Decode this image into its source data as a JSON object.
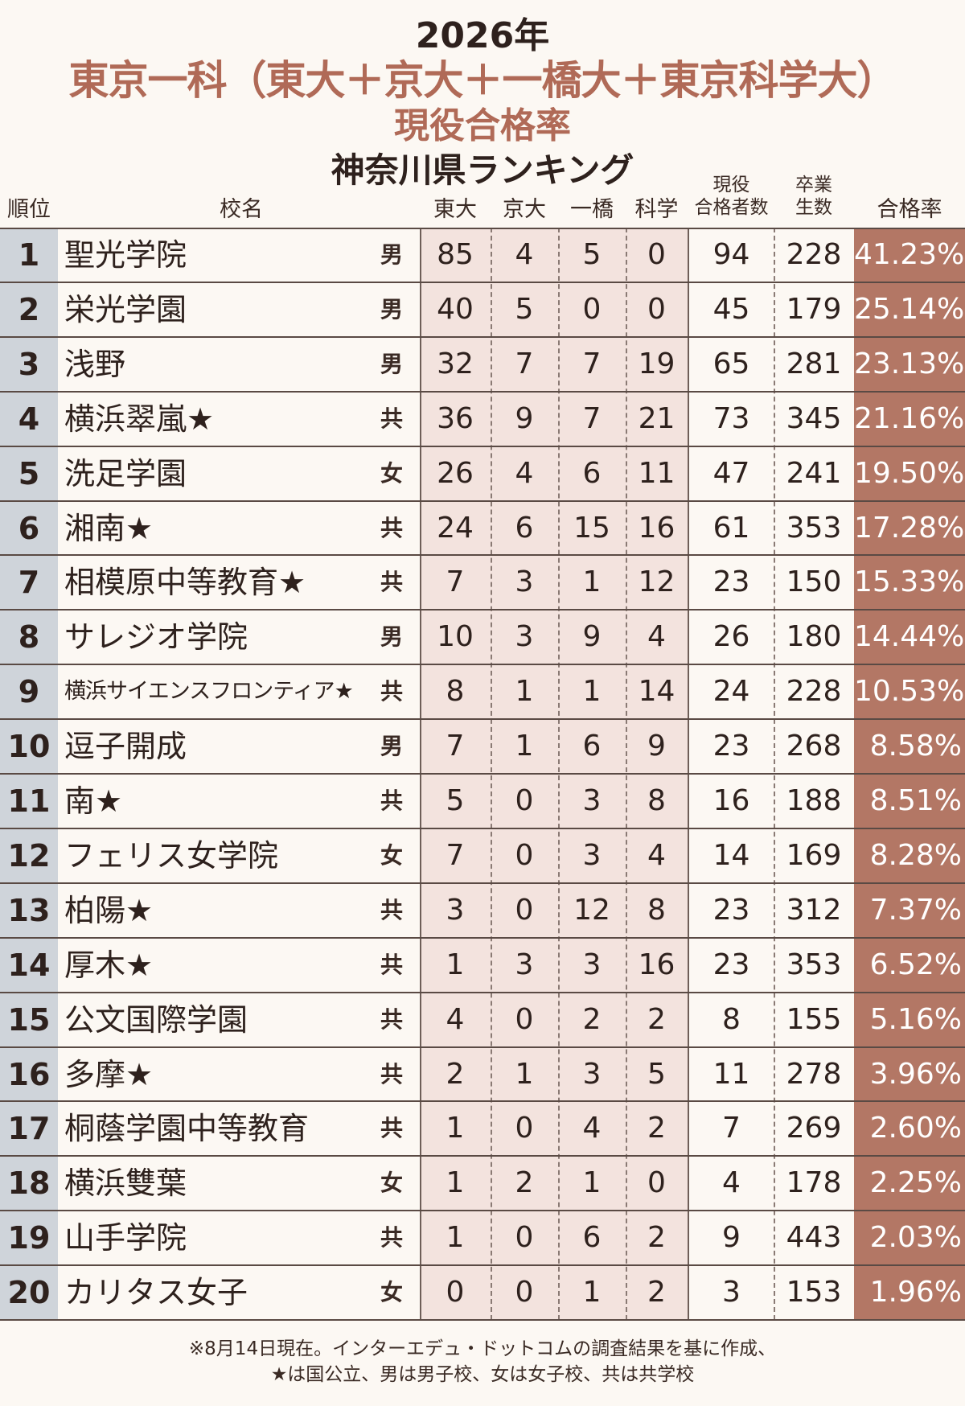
{
  "chart_data": {
    "type": "table",
    "title_year": "2026年",
    "title_main": "東京一科（東大＋京大＋一橋大＋東京科学大）",
    "title_sub": "現役合格率",
    "title_region": "神奈川県ランキング",
    "headers": {
      "rank": "順位",
      "name": "校名",
      "tokyo": "東大",
      "kyoto": "京大",
      "hitotsubashi": "一橋",
      "kagaku": "科学",
      "total_l1": "現役",
      "total_l2": "合格者数",
      "grads_l1": "卒業",
      "grads_l2": "生数",
      "rate": "合格率"
    },
    "rows": [
      {
        "rank": "1",
        "name": "聖光学院",
        "type": "男",
        "tokyo": "85",
        "kyoto": "4",
        "hitotsubashi": "5",
        "kagaku": "0",
        "total": "94",
        "grads": "228",
        "rate": "41.23%"
      },
      {
        "rank": "2",
        "name": "栄光学園",
        "type": "男",
        "tokyo": "40",
        "kyoto": "5",
        "hitotsubashi": "0",
        "kagaku": "0",
        "total": "45",
        "grads": "179",
        "rate": "25.14%"
      },
      {
        "rank": "3",
        "name": "浅野",
        "type": "男",
        "tokyo": "32",
        "kyoto": "7",
        "hitotsubashi": "7",
        "kagaku": "19",
        "total": "65",
        "grads": "281",
        "rate": "23.13%"
      },
      {
        "rank": "4",
        "name": "横浜翠嵐★",
        "type": "共",
        "tokyo": "36",
        "kyoto": "9",
        "hitotsubashi": "7",
        "kagaku": "21",
        "total": "73",
        "grads": "345",
        "rate": "21.16%"
      },
      {
        "rank": "5",
        "name": "洗足学園",
        "type": "女",
        "tokyo": "26",
        "kyoto": "4",
        "hitotsubashi": "6",
        "kagaku": "11",
        "total": "47",
        "grads": "241",
        "rate": "19.50%"
      },
      {
        "rank": "6",
        "name": "湘南★",
        "type": "共",
        "tokyo": "24",
        "kyoto": "6",
        "hitotsubashi": "15",
        "kagaku": "16",
        "total": "61",
        "grads": "353",
        "rate": "17.28%"
      },
      {
        "rank": "7",
        "name": "相模原中等教育★",
        "type": "共",
        "tokyo": "7",
        "kyoto": "3",
        "hitotsubashi": "1",
        "kagaku": "12",
        "total": "23",
        "grads": "150",
        "rate": "15.33%"
      },
      {
        "rank": "8",
        "name": "サレジオ学院",
        "type": "男",
        "tokyo": "10",
        "kyoto": "3",
        "hitotsubashi": "9",
        "kagaku": "4",
        "total": "26",
        "grads": "180",
        "rate": "14.44%"
      },
      {
        "rank": "9",
        "name": "横浜サイエンスフロンティア★",
        "type": "共",
        "tokyo": "8",
        "kyoto": "1",
        "hitotsubashi": "1",
        "kagaku": "14",
        "total": "24",
        "grads": "228",
        "rate": "10.53%"
      },
      {
        "rank": "10",
        "name": "逗子開成",
        "type": "男",
        "tokyo": "7",
        "kyoto": "1",
        "hitotsubashi": "6",
        "kagaku": "9",
        "total": "23",
        "grads": "268",
        "rate": "8.58%"
      },
      {
        "rank": "11",
        "name": "南★",
        "type": "共",
        "tokyo": "5",
        "kyoto": "0",
        "hitotsubashi": "3",
        "kagaku": "8",
        "total": "16",
        "grads": "188",
        "rate": "8.51%"
      },
      {
        "rank": "12",
        "name": "フェリス女学院",
        "type": "女",
        "tokyo": "7",
        "kyoto": "0",
        "hitotsubashi": "3",
        "kagaku": "4",
        "total": "14",
        "grads": "169",
        "rate": "8.28%"
      },
      {
        "rank": "13",
        "name": "柏陽★",
        "type": "共",
        "tokyo": "3",
        "kyoto": "0",
        "hitotsubashi": "12",
        "kagaku": "8",
        "total": "23",
        "grads": "312",
        "rate": "7.37%"
      },
      {
        "rank": "14",
        "name": "厚木★",
        "type": "共",
        "tokyo": "1",
        "kyoto": "3",
        "hitotsubashi": "3",
        "kagaku": "16",
        "total": "23",
        "grads": "353",
        "rate": "6.52%"
      },
      {
        "rank": "15",
        "name": "公文国際学園",
        "type": "共",
        "tokyo": "4",
        "kyoto": "0",
        "hitotsubashi": "2",
        "kagaku": "2",
        "total": "8",
        "grads": "155",
        "rate": "5.16%"
      },
      {
        "rank": "16",
        "name": "多摩★",
        "type": "共",
        "tokyo": "2",
        "kyoto": "1",
        "hitotsubashi": "3",
        "kagaku": "5",
        "total": "11",
        "grads": "278",
        "rate": "3.96%"
      },
      {
        "rank": "17",
        "name": "桐蔭学園中等教育",
        "type": "共",
        "tokyo": "1",
        "kyoto": "0",
        "hitotsubashi": "4",
        "kagaku": "2",
        "total": "7",
        "grads": "269",
        "rate": "2.60%"
      },
      {
        "rank": "18",
        "name": "横浜雙葉",
        "type": "女",
        "tokyo": "1",
        "kyoto": "2",
        "hitotsubashi": "1",
        "kagaku": "0",
        "total": "4",
        "grads": "178",
        "rate": "2.25%"
      },
      {
        "rank": "19",
        "name": "山手学院",
        "type": "共",
        "tokyo": "1",
        "kyoto": "0",
        "hitotsubashi": "6",
        "kagaku": "2",
        "total": "9",
        "grads": "443",
        "rate": "2.03%"
      },
      {
        "rank": "20",
        "name": "カリタス女子",
        "type": "女",
        "tokyo": "0",
        "kyoto": "0",
        "hitotsubashi": "1",
        "kagaku": "2",
        "total": "3",
        "grads": "153",
        "rate": "1.96%"
      }
    ],
    "footnote_l1": "※8月14日現在。インターエデュ・ドットコムの調査結果を基に作成、",
    "footnote_l2": "★は国公立、男は男子校、女は女子校、共は共学校",
    "colors": {
      "title_accent": "#b06a57",
      "rate_column": "#b37765",
      "number_columns_bg": "#f3e3de",
      "rank_column_bg": "#cfd4da",
      "page_bg": "#fcf8f3"
    }
  }
}
